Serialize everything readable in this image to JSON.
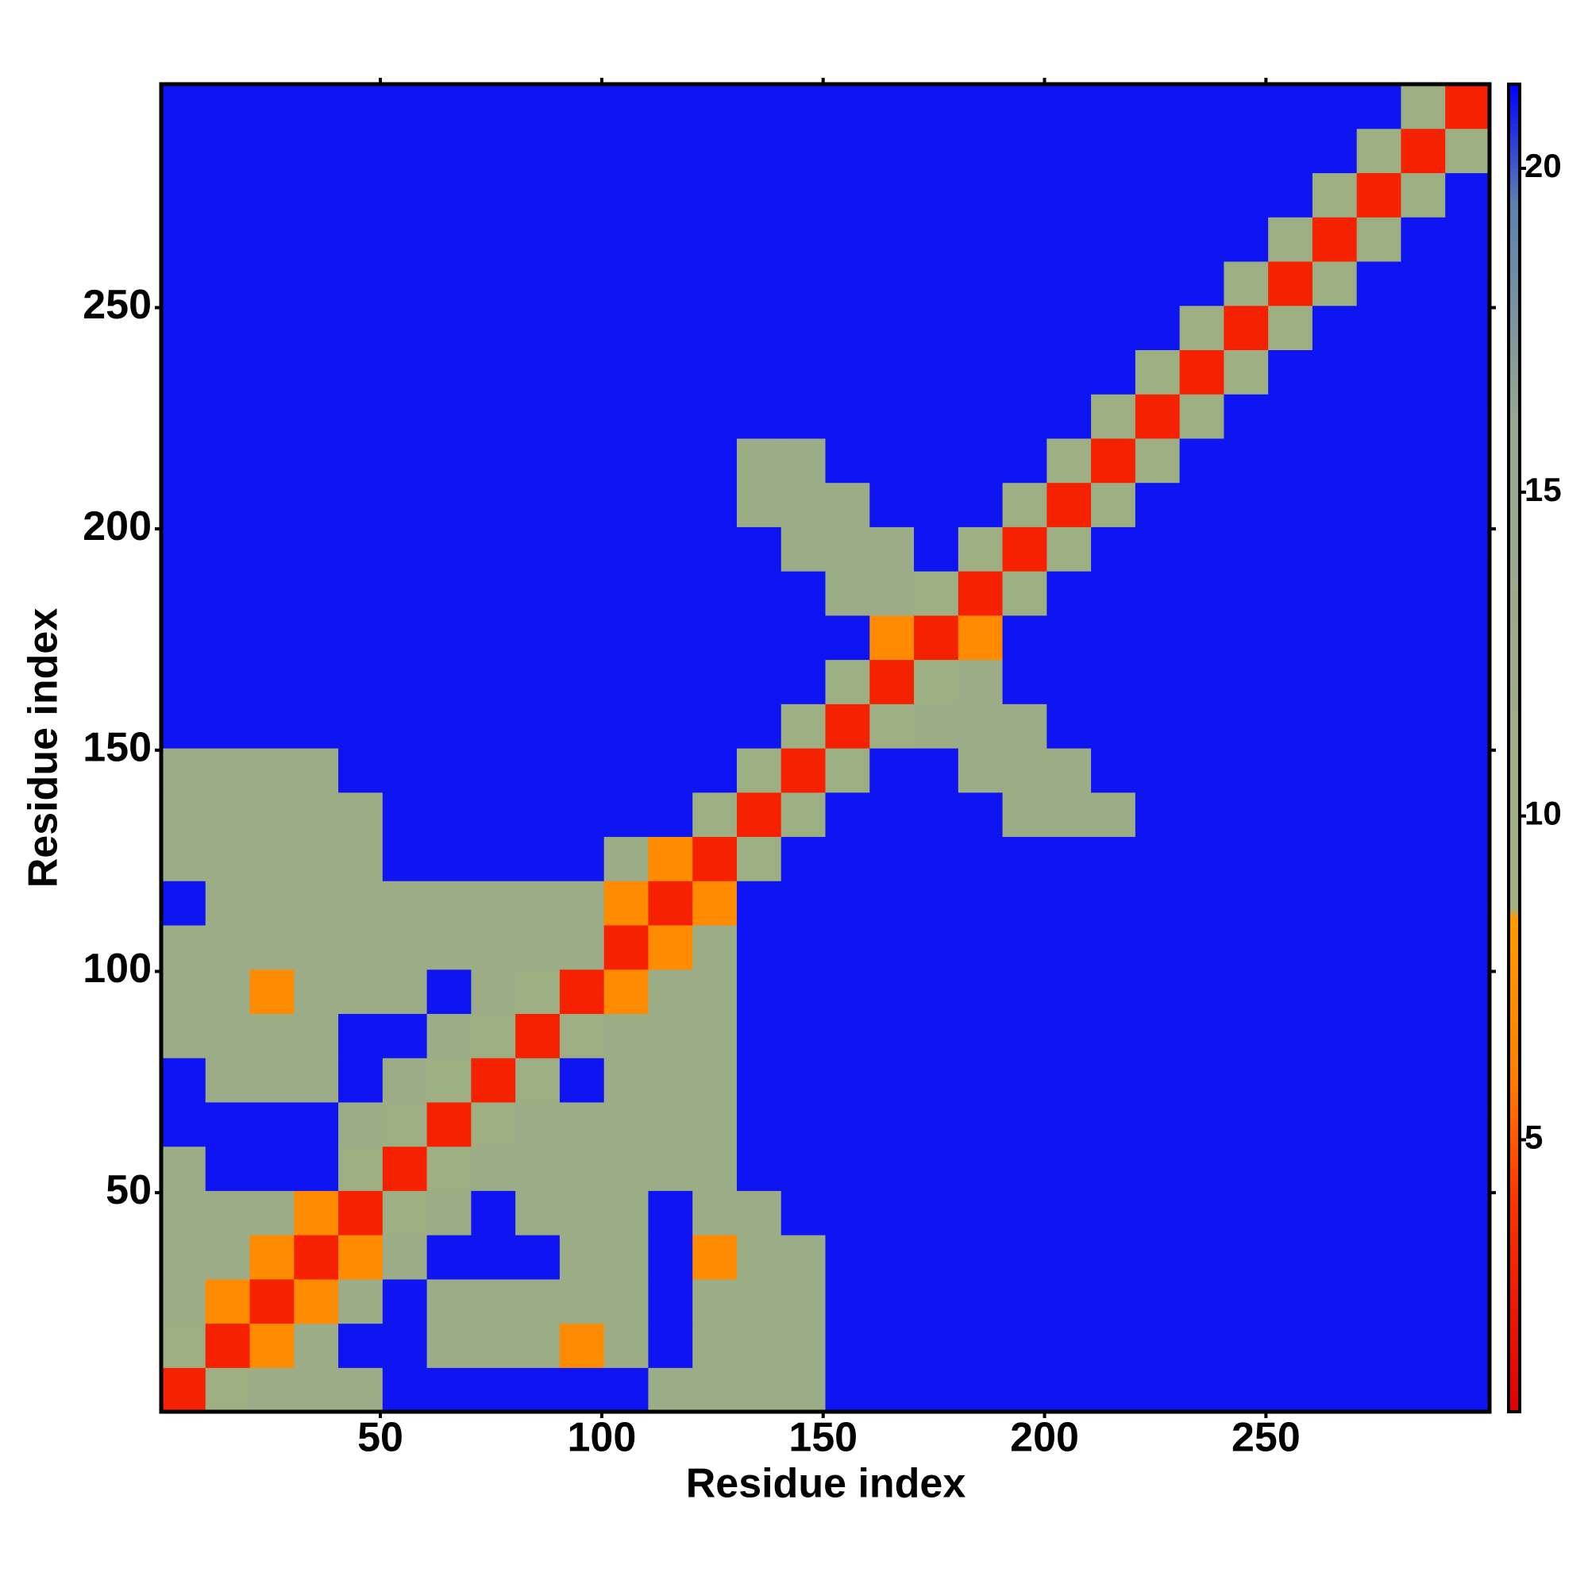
{
  "chart_data": {
    "type": "heatmap",
    "xlabel": "Residue index",
    "ylabel": "Residue index",
    "x": [
      5.5,
      15.5,
      25.5,
      35.5,
      45.5,
      55.5,
      65.5,
      75.5,
      85.5,
      95.5,
      105.5,
      115.5,
      125.5,
      135.5,
      145.5,
      155.5,
      165.5,
      175.5,
      185.5,
      195.5,
      205.5,
      215.5,
      225.5,
      235.5,
      245.5,
      255.5,
      265.5,
      275.5,
      285.5,
      295.5
    ],
    "y": [
      5.5,
      15.5,
      25.5,
      35.5,
      45.5,
      55.5,
      65.5,
      75.5,
      85.5,
      95.5,
      105.5,
      115.5,
      125.5,
      135.5,
      145.5,
      155.5,
      165.5,
      175.5,
      185.5,
      195.5,
      205.5,
      215.5,
      225.5,
      235.5,
      245.5,
      255.5,
      265.5,
      275.5,
      285.5,
      295.5
    ],
    "values": [
      [
        3,
        10,
        12,
        12,
        12,
        21,
        21,
        21,
        21,
        21,
        21,
        12,
        12,
        12,
        12,
        21,
        21,
        21,
        21,
        21,
        21,
        21,
        21,
        21,
        21,
        21,
        21,
        21,
        21,
        21
      ],
      [
        10,
        3,
        7,
        12,
        21,
        21,
        12,
        12,
        12,
        7,
        12,
        21,
        12,
        12,
        12,
        21,
        21,
        21,
        21,
        21,
        21,
        21,
        21,
        21,
        21,
        21,
        21,
        21,
        21,
        21
      ],
      [
        12,
        7,
        3,
        7,
        12,
        21,
        12,
        12,
        12,
        12,
        12,
        21,
        12,
        12,
        12,
        21,
        21,
        21,
        21,
        21,
        21,
        21,
        21,
        21,
        21,
        21,
        21,
        21,
        21,
        21
      ],
      [
        12,
        12,
        7,
        3,
        7,
        12,
        21,
        21,
        21,
        12,
        12,
        21,
        7,
        12,
        12,
        21,
        21,
        21,
        21,
        21,
        21,
        21,
        21,
        21,
        21,
        21,
        21,
        21,
        21,
        21
      ],
      [
        12,
        12,
        12,
        7,
        3,
        10,
        12,
        21,
        12,
        12,
        12,
        21,
        12,
        12,
        21,
        21,
        21,
        21,
        21,
        21,
        21,
        21,
        21,
        21,
        21,
        21,
        21,
        21,
        21,
        21
      ],
      [
        12,
        21,
        21,
        21,
        10,
        3,
        10,
        12,
        12,
        12,
        12,
        12,
        12,
        21,
        21,
        21,
        21,
        21,
        21,
        21,
        21,
        21,
        21,
        21,
        21,
        21,
        21,
        21,
        21,
        21
      ],
      [
        21,
        21,
        21,
        21,
        12,
        10,
        3,
        10,
        12,
        12,
        12,
        12,
        12,
        21,
        21,
        21,
        21,
        21,
        21,
        21,
        21,
        21,
        21,
        21,
        21,
        21,
        21,
        21,
        21,
        21
      ],
      [
        21,
        12,
        12,
        12,
        21,
        12,
        10,
        3,
        10,
        21,
        12,
        12,
        12,
        21,
        21,
        21,
        21,
        21,
        21,
        21,
        21,
        21,
        21,
        21,
        21,
        21,
        21,
        21,
        21,
        21
      ],
      [
        12,
        12,
        12,
        12,
        21,
        21,
        12,
        10,
        3,
        10,
        12,
        12,
        12,
        21,
        21,
        21,
        21,
        21,
        21,
        21,
        21,
        21,
        21,
        21,
        21,
        21,
        21,
        21,
        21,
        21
      ],
      [
        12,
        12,
        7,
        12,
        12,
        12,
        21,
        12,
        10,
        3,
        7,
        12,
        12,
        21,
        21,
        21,
        21,
        21,
        21,
        21,
        21,
        21,
        21,
        21,
        21,
        21,
        21,
        21,
        21,
        21
      ],
      [
        12,
        12,
        12,
        12,
        12,
        12,
        12,
        12,
        12,
        12,
        3,
        7,
        12,
        21,
        21,
        21,
        21,
        21,
        21,
        21,
        21,
        21,
        21,
        21,
        21,
        21,
        21,
        21,
        21,
        21
      ],
      [
        21,
        12,
        12,
        12,
        12,
        12,
        12,
        12,
        12,
        12,
        7,
        3,
        7,
        21,
        21,
        21,
        21,
        21,
        21,
        21,
        21,
        21,
        21,
        21,
        21,
        21,
        21,
        21,
        21,
        21
      ],
      [
        12,
        12,
        12,
        12,
        12,
        21,
        21,
        21,
        21,
        21,
        12,
        7,
        3,
        10,
        21,
        21,
        21,
        21,
        21,
        21,
        21,
        21,
        21,
        21,
        21,
        21,
        21,
        21,
        21,
        21
      ],
      [
        12,
        12,
        12,
        12,
        12,
        21,
        21,
        21,
        21,
        21,
        21,
        21,
        10,
        3,
        10,
        21,
        21,
        21,
        21,
        12,
        12,
        12,
        21,
        21,
        21,
        21,
        21,
        21,
        21,
        21
      ],
      [
        12,
        12,
        12,
        12,
        21,
        21,
        21,
        21,
        21,
        21,
        21,
        21,
        21,
        10,
        3,
        10,
        21,
        21,
        12,
        12,
        12,
        21,
        21,
        21,
        21,
        21,
        21,
        21,
        21,
        21
      ],
      [
        21,
        21,
        21,
        21,
        21,
        21,
        21,
        21,
        21,
        21,
        21,
        21,
        21,
        21,
        10,
        3,
        10,
        12,
        12,
        12,
        21,
        21,
        21,
        21,
        21,
        21,
        21,
        21,
        21,
        21
      ],
      [
        21,
        21,
        21,
        21,
        21,
        21,
        21,
        21,
        21,
        21,
        21,
        21,
        21,
        21,
        21,
        10,
        3,
        10,
        12,
        21,
        21,
        21,
        21,
        21,
        21,
        21,
        21,
        21,
        21,
        21
      ],
      [
        21,
        21,
        21,
        21,
        21,
        21,
        21,
        21,
        21,
        21,
        21,
        21,
        21,
        21,
        21,
        21,
        7,
        3,
        7,
        21,
        21,
        21,
        21,
        21,
        21,
        21,
        21,
        21,
        21,
        21
      ],
      [
        21,
        21,
        21,
        21,
        21,
        21,
        21,
        21,
        21,
        21,
        21,
        21,
        21,
        21,
        21,
        12,
        12,
        10,
        3,
        10,
        21,
        21,
        21,
        21,
        21,
        21,
        21,
        21,
        21,
        21
      ],
      [
        21,
        21,
        21,
        21,
        21,
        21,
        21,
        21,
        21,
        21,
        21,
        21,
        21,
        21,
        12,
        12,
        12,
        21,
        10,
        3,
        10,
        21,
        21,
        21,
        21,
        21,
        21,
        21,
        21,
        21
      ],
      [
        21,
        21,
        21,
        21,
        21,
        21,
        21,
        21,
        21,
        21,
        21,
        21,
        21,
        12,
        12,
        12,
        21,
        21,
        21,
        10,
        3,
        10,
        21,
        21,
        21,
        21,
        21,
        21,
        21,
        21
      ],
      [
        21,
        21,
        21,
        21,
        21,
        21,
        21,
        21,
        21,
        21,
        21,
        21,
        21,
        12,
        12,
        21,
        21,
        21,
        21,
        21,
        10,
        3,
        10,
        21,
        21,
        21,
        21,
        21,
        21,
        21
      ],
      [
        21,
        21,
        21,
        21,
        21,
        21,
        21,
        21,
        21,
        21,
        21,
        21,
        21,
        21,
        21,
        21,
        21,
        21,
        21,
        21,
        21,
        10,
        3,
        10,
        21,
        21,
        21,
        21,
        21,
        21
      ],
      [
        21,
        21,
        21,
        21,
        21,
        21,
        21,
        21,
        21,
        21,
        21,
        21,
        21,
        21,
        21,
        21,
        21,
        21,
        21,
        21,
        21,
        21,
        10,
        3,
        10,
        21,
        21,
        21,
        21,
        21
      ],
      [
        21,
        21,
        21,
        21,
        21,
        21,
        21,
        21,
        21,
        21,
        21,
        21,
        21,
        21,
        21,
        21,
        21,
        21,
        21,
        21,
        21,
        21,
        21,
        10,
        3,
        10,
        21,
        21,
        21,
        21
      ],
      [
        21,
        21,
        21,
        21,
        21,
        21,
        21,
        21,
        21,
        21,
        21,
        21,
        21,
        21,
        21,
        21,
        21,
        21,
        21,
        21,
        21,
        21,
        21,
        21,
        10,
        3,
        10,
        21,
        21,
        21
      ],
      [
        21,
        21,
        21,
        21,
        21,
        21,
        21,
        21,
        21,
        21,
        21,
        21,
        21,
        21,
        21,
        21,
        21,
        21,
        21,
        21,
        21,
        21,
        21,
        21,
        21,
        10,
        3,
        10,
        21,
        21
      ],
      [
        21,
        21,
        21,
        21,
        21,
        21,
        21,
        21,
        21,
        21,
        21,
        21,
        21,
        21,
        21,
        21,
        21,
        21,
        21,
        21,
        21,
        21,
        21,
        21,
        21,
        21,
        10,
        3,
        10,
        21
      ],
      [
        21,
        21,
        21,
        21,
        21,
        21,
        21,
        21,
        21,
        21,
        21,
        21,
        21,
        21,
        21,
        21,
        21,
        21,
        21,
        21,
        21,
        21,
        21,
        21,
        21,
        21,
        21,
        10,
        3,
        10
      ],
      [
        21,
        21,
        21,
        21,
        21,
        21,
        21,
        21,
        21,
        21,
        21,
        21,
        21,
        21,
        21,
        21,
        21,
        21,
        21,
        21,
        21,
        21,
        21,
        21,
        21,
        21,
        21,
        21,
        10,
        3
      ]
    ],
    "xlim": [
      0.5,
      300.5
    ],
    "ylim": [
      0.5,
      300.5
    ],
    "xticks": [
      50,
      100,
      150,
      200,
      250
    ],
    "yticks": [
      50,
      100,
      150,
      200,
      250
    ],
    "colorbar": {
      "lim": [
        0.8,
        21.3
      ],
      "ticks": [
        5,
        10,
        15,
        20
      ],
      "colorscale": [
        [
          0.8,
          "#e00000"
        ],
        [
          4,
          "#ff3000"
        ],
        [
          6,
          "#ff8000"
        ],
        [
          8.4,
          "#ff9a00"
        ],
        [
          8.6,
          "#a0b080"
        ],
        [
          16,
          "#98a890"
        ],
        [
          19.5,
          "#5a80b0"
        ],
        [
          21.3,
          "#0000ff"
        ]
      ]
    }
  }
}
